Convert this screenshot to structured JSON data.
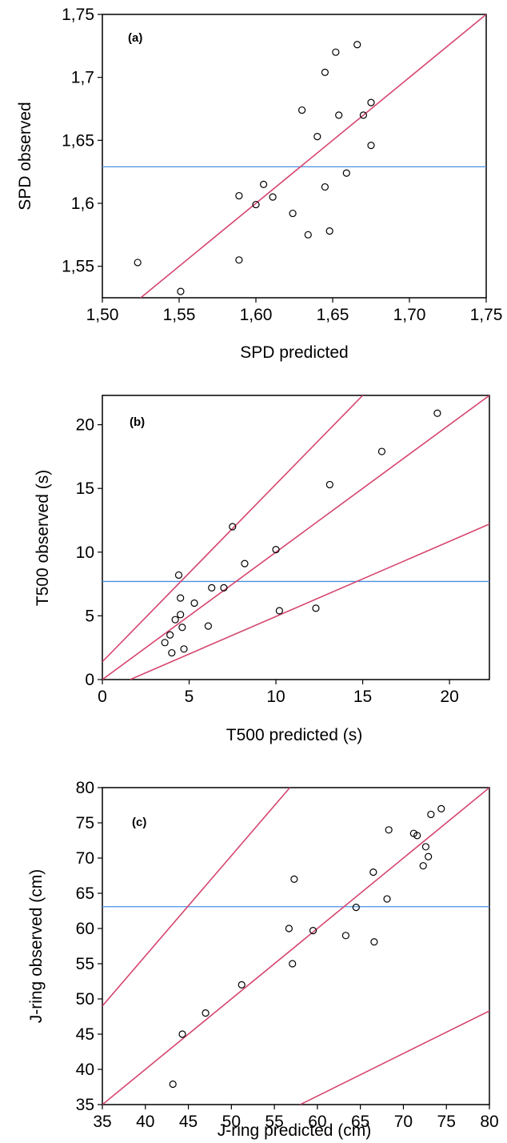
{
  "chart_data": [
    {
      "type": "scatter",
      "panel_label": "(a)",
      "xlabel": "SPD predicted",
      "ylabel": "SPD observed",
      "xlim": [
        1.5,
        1.75
      ],
      "ylim": [
        1.525,
        1.75
      ],
      "xticks": [
        1.5,
        1.55,
        1.6,
        1.65,
        1.7,
        1.75
      ],
      "xtick_labels": [
        "1,50",
        "1,55",
        "1,60",
        "1,65",
        "1,70",
        "1,75"
      ],
      "yticks": [
        1.55,
        1.6,
        1.65,
        1.7,
        1.75
      ],
      "ytick_labels": [
        "1,55",
        "1,6",
        "1,65",
        "1,7",
        "1,75"
      ],
      "grid": false,
      "colors": {
        "fit_lines": "#d6456e",
        "mean_line": "#4a90e2",
        "points": "#000000"
      },
      "points": [
        {
          "x": 1.523,
          "y": 1.553
        },
        {
          "x": 1.551,
          "y": 1.53
        },
        {
          "x": 1.589,
          "y": 1.555
        },
        {
          "x": 1.589,
          "y": 1.606
        },
        {
          "x": 1.6,
          "y": 1.599
        },
        {
          "x": 1.605,
          "y": 1.615
        },
        {
          "x": 1.611,
          "y": 1.605
        },
        {
          "x": 1.624,
          "y": 1.592
        },
        {
          "x": 1.63,
          "y": 1.674
        },
        {
          "x": 1.634,
          "y": 1.575
        },
        {
          "x": 1.64,
          "y": 1.653
        },
        {
          "x": 1.645,
          "y": 1.704
        },
        {
          "x": 1.645,
          "y": 1.613
        },
        {
          "x": 1.648,
          "y": 1.578
        },
        {
          "x": 1.652,
          "y": 1.72
        },
        {
          "x": 1.654,
          "y": 1.67
        },
        {
          "x": 1.659,
          "y": 1.624
        },
        {
          "x": 1.666,
          "y": 1.726
        },
        {
          "x": 1.67,
          "y": 1.67
        },
        {
          "x": 1.675,
          "y": 1.68
        },
        {
          "x": 1.675,
          "y": 1.646
        }
      ],
      "lines": [
        {
          "role": "identity",
          "from": [
            1.5,
            1.5
          ],
          "to": [
            1.75,
            1.75
          ]
        }
      ],
      "hline": {
        "role": "mean",
        "y": 1.629
      }
    },
    {
      "type": "scatter",
      "panel_label": "(b)",
      "xlabel": "T500 predicted (s)",
      "ylabel": "T500 observed (s)",
      "xlim": [
        0,
        22.3
      ],
      "ylim": [
        0,
        22.3
      ],
      "xticks": [
        0,
        5,
        10,
        15,
        20
      ],
      "xtick_labels": [
        "0",
        "5",
        "10",
        "15",
        "20"
      ],
      "yticks": [
        0,
        5,
        10,
        15,
        20
      ],
      "ytick_labels": [
        "0",
        "5",
        "10",
        "15",
        "20"
      ],
      "grid": false,
      "points": [
        {
          "x": 3.6,
          "y": 2.9
        },
        {
          "x": 3.9,
          "y": 3.5
        },
        {
          "x": 4.0,
          "y": 2.1
        },
        {
          "x": 4.2,
          "y": 4.7
        },
        {
          "x": 4.4,
          "y": 8.2
        },
        {
          "x": 4.5,
          "y": 6.4
        },
        {
          "x": 4.5,
          "y": 5.1
        },
        {
          "x": 4.6,
          "y": 4.1
        },
        {
          "x": 4.7,
          "y": 2.4
        },
        {
          "x": 5.3,
          "y": 6.0
        },
        {
          "x": 6.1,
          "y": 4.2
        },
        {
          "x": 6.3,
          "y": 7.2
        },
        {
          "x": 7.0,
          "y": 7.2
        },
        {
          "x": 7.5,
          "y": 12.0
        },
        {
          "x": 8.2,
          "y": 9.1
        },
        {
          "x": 10.0,
          "y": 10.2
        },
        {
          "x": 10.2,
          "y": 5.4
        },
        {
          "x": 12.3,
          "y": 5.6
        },
        {
          "x": 13.1,
          "y": 15.3
        },
        {
          "x": 16.1,
          "y": 17.9
        },
        {
          "x": 19.3,
          "y": 20.9
        }
      ],
      "lines": [
        {
          "role": "identity",
          "from": [
            0,
            0
          ],
          "to": [
            22.3,
            22.3
          ]
        },
        {
          "role": "upper-bound",
          "from": [
            0,
            1.4
          ],
          "to": [
            15.0,
            22.3
          ]
        },
        {
          "role": "lower-bound",
          "from": [
            1.6,
            0
          ],
          "to": [
            22.3,
            12.2
          ]
        }
      ],
      "hline": {
        "role": "mean",
        "y": 7.7
      }
    },
    {
      "type": "scatter",
      "panel_label": "(c)",
      "xlabel": "J-ring predicted (cm)",
      "ylabel": "J-ring observed (cm)",
      "xlim": [
        35,
        80
      ],
      "ylim": [
        35,
        80
      ],
      "xticks": [
        35,
        40,
        45,
        50,
        55,
        60,
        65,
        70,
        75,
        80
      ],
      "xtick_labels": [
        "35",
        "40",
        "45",
        "50",
        "55",
        "60",
        "65",
        "70",
        "75",
        "80"
      ],
      "yticks": [
        35,
        40,
        45,
        50,
        55,
        60,
        65,
        70,
        75,
        80
      ],
      "ytick_labels": [
        "35",
        "40",
        "45",
        "50",
        "55",
        "60",
        "65",
        "70",
        "75",
        "80"
      ],
      "grid": false,
      "points": [
        {
          "x": 43.2,
          "y": 37.9
        },
        {
          "x": 44.3,
          "y": 45.0
        },
        {
          "x": 47.0,
          "y": 48.0
        },
        {
          "x": 51.2,
          "y": 52.0
        },
        {
          "x": 56.7,
          "y": 60.0
        },
        {
          "x": 57.1,
          "y": 55.0
        },
        {
          "x": 57.3,
          "y": 67.0
        },
        {
          "x": 59.5,
          "y": 59.7
        },
        {
          "x": 63.3,
          "y": 59.0
        },
        {
          "x": 64.5,
          "y": 63.0
        },
        {
          "x": 66.5,
          "y": 68.0
        },
        {
          "x": 66.6,
          "y": 58.1
        },
        {
          "x": 68.1,
          "y": 64.2
        },
        {
          "x": 68.3,
          "y": 74.0
        },
        {
          "x": 71.2,
          "y": 73.5
        },
        {
          "x": 71.6,
          "y": 73.2
        },
        {
          "x": 72.3,
          "y": 68.9
        },
        {
          "x": 72.6,
          "y": 71.6
        },
        {
          "x": 72.9,
          "y": 70.2
        },
        {
          "x": 73.2,
          "y": 76.2
        },
        {
          "x": 74.4,
          "y": 77.0
        }
      ],
      "lines": [
        {
          "role": "identity",
          "from": [
            35,
            35
          ],
          "to": [
            80,
            80
          ]
        },
        {
          "role": "upper-bound",
          "from": [
            35,
            49.0
          ],
          "to": [
            56.8,
            80
          ]
        },
        {
          "role": "lower-bound",
          "from": [
            58.0,
            35
          ],
          "to": [
            80,
            48.3
          ]
        }
      ],
      "hline": {
        "role": "mean",
        "y": 63.1
      }
    }
  ]
}
